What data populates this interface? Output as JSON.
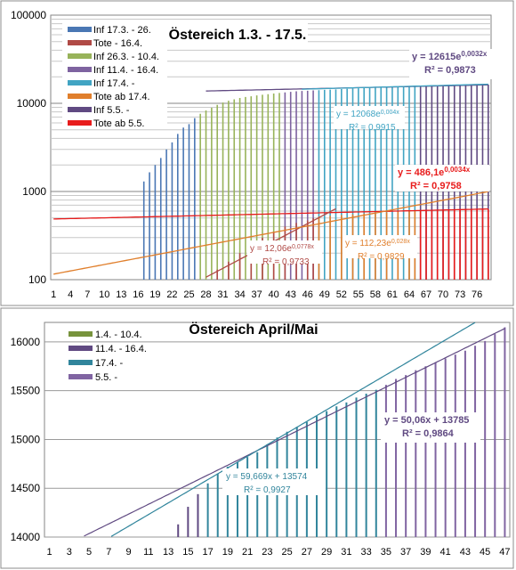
{
  "chart_data": [
    {
      "type": "bar",
      "title": "Östereich 1.3. - 17.5.",
      "xlabel": "",
      "ylabel": "",
      "yscale": "log",
      "ylim": [
        100,
        100000
      ],
      "xlim": [
        1,
        78
      ],
      "y_ticks": [
        "100",
        "1000",
        "10000",
        "100000"
      ],
      "x_ticks": [
        "1",
        "4",
        "7",
        "10",
        "13",
        "16",
        "19",
        "22",
        "25",
        "28",
        "31",
        "34",
        "37",
        "40",
        "43",
        "46",
        "49",
        "52",
        "55",
        "58",
        "61",
        "64",
        "67",
        "70",
        "73",
        "76"
      ],
      "grid": true,
      "legend_position": "top-left",
      "legend": [
        {
          "name": "Inf 17.3. - 26.",
          "color": "#4a77b4"
        },
        {
          "name": "Tote - 16.4.",
          "color": "#b04a46"
        },
        {
          "name": "Inf 26.3. - 10.4.",
          "color": "#98b35a"
        },
        {
          "name": "Inf 11.4. - 16.4.",
          "color": "#7e63a0"
        },
        {
          "name": "Inf 17.4. -",
          "color": "#41a4c3"
        },
        {
          "name": "Tote ab 17.4.",
          "color": "#e07f2c"
        },
        {
          "name": "Inf 5.5. -",
          "color": "#604a82"
        },
        {
          "name": "Tote ab 5.5.",
          "color": "#e81c1c"
        }
      ],
      "series": [
        {
          "name": "Inf 17.3. - 26.",
          "color": "#4a77b4",
          "x": [
            17,
            18,
            19,
            20,
            21,
            22,
            23,
            24,
            25,
            26
          ],
          "values": [
            1300,
            1650,
            2000,
            2400,
            3000,
            3600,
            4500,
            5300,
            5800,
            6800
          ]
        },
        {
          "name": "Inf 26.3. - 10.4.",
          "color": "#98b35a",
          "x": [
            27,
            28,
            29,
            30,
            31,
            32,
            33,
            34,
            35,
            36,
            37,
            38,
            39,
            40,
            41
          ],
          "values": [
            7600,
            8300,
            8900,
            9600,
            10200,
            10700,
            11100,
            11500,
            11800,
            12000,
            12300,
            12500,
            12700,
            12900,
            13100
          ]
        },
        {
          "name": "Inf 11.4. - 16.4.",
          "color": "#7e63a0",
          "x": [
            42,
            43,
            44,
            45,
            46,
            47
          ],
          "values": [
            13300,
            13500,
            13700,
            13800,
            13900,
            14000
          ]
        },
        {
          "name": "Inf 17.4. -",
          "color": "#41a4c3",
          "x": [
            48,
            49,
            50,
            51,
            52,
            53,
            54,
            55,
            56,
            57,
            58,
            59,
            60,
            61,
            62,
            63,
            64,
            65
          ],
          "values": [
            14100,
            14200,
            14300,
            14400,
            14500,
            14600,
            14700,
            14800,
            14900,
            15000,
            15100,
            15200,
            15300,
            15400,
            15500,
            15550,
            15600,
            15650
          ]
        },
        {
          "name": "Inf 5.5. -",
          "color": "#604a82",
          "x": [
            66,
            67,
            68,
            69,
            70,
            71,
            72,
            73,
            74,
            75,
            76,
            77,
            78
          ],
          "values": [
            15700,
            15750,
            15800,
            15850,
            15900,
            15950,
            16000,
            16050,
            16100,
            16150,
            16200,
            16250,
            16300
          ]
        },
        {
          "name": "Tote - 16.4.",
          "color": "#b04a46",
          "x": [
            28,
            30,
            32,
            34,
            36,
            38,
            40,
            42,
            44,
            46,
            47
          ],
          "values": [
            100,
            130,
            160,
            200,
            250,
            300,
            350,
            400,
            440,
            470,
            500
          ]
        },
        {
          "name": "Tote ab 17.4.",
          "color": "#e07f2c",
          "x": [
            48,
            50,
            52,
            54,
            56,
            58,
            60,
            62,
            64,
            65
          ],
          "values": [
            520,
            530,
            540,
            550,
            560,
            570,
            580,
            590,
            600,
            610
          ]
        },
        {
          "name": "Tote ab 5.5.",
          "color": "#e81c1c",
          "x": [
            66,
            67,
            68,
            69,
            70,
            71,
            72,
            73,
            74,
            75,
            76,
            77,
            78
          ],
          "values": [
            610,
            612,
            615,
            617,
            620,
            622,
            624,
            625,
            626,
            627,
            628,
            629,
            630
          ]
        }
      ],
      "trendlines": [
        {
          "label": "y = 12615e",
          "exp": "0,0032x",
          "r2": "R² = 0,9873",
          "color": "#604a82",
          "a": 12615,
          "b": 0.0032,
          "from": 28,
          "to": 78
        },
        {
          "label": "y = 12068e",
          "exp": "0,004x",
          "r2": "R² = 0,9915",
          "color": "#41a4c3",
          "a": 12068,
          "b": 0.004,
          "from": 45,
          "to": 78
        },
        {
          "label": "y = 486,1e",
          "exp": "0,0034x",
          "r2": "R² = 0,9758",
          "color": "#e81c1c",
          "a": 486.1,
          "b": 0.0034,
          "from": 1,
          "to": 78
        },
        {
          "label": "y = 12,06e",
          "exp": "0,0778x",
          "r2": "R² = 0,9733",
          "color": "#b04a46",
          "a": 12.06,
          "b": 0.0778,
          "from": 28,
          "to": 51
        },
        {
          "label": "y = 112,23e",
          "exp": "0,028x",
          "r2": "R² = 0,9829",
          "color": "#e07f2c",
          "a": 112.23,
          "b": 0.028,
          "from": 1,
          "to": 78
        }
      ]
    },
    {
      "type": "bar",
      "title": "Östereich April/Mai",
      "xlabel": "",
      "ylabel": "",
      "ylim": [
        14000,
        16200
      ],
      "xlim": [
        1,
        47
      ],
      "y_ticks": [
        "14000",
        "14500",
        "15000",
        "15500",
        "16000"
      ],
      "x_ticks": [
        "1",
        "3",
        "5",
        "7",
        "9",
        "11",
        "13",
        "15",
        "17",
        "19",
        "21",
        "23",
        "25",
        "27",
        "29",
        "31",
        "33",
        "35",
        "37",
        "39",
        "41",
        "43",
        "45",
        "47"
      ],
      "grid": true,
      "legend_position": "top-left",
      "legend": [
        {
          "name": "1.4. - 10.4.",
          "color": "#77933c"
        },
        {
          "name": "11.4. - 16.4.",
          "color": "#604a82"
        },
        {
          "name": "17.4. -",
          "color": "#31859c"
        },
        {
          "name": "5.5. -",
          "color": "#8064a2"
        }
      ],
      "series": [
        {
          "name": "1.4. - 10.4.",
          "color": "#77933c",
          "x": [
            1,
            2,
            3,
            4,
            5,
            6,
            7,
            8,
            9,
            10
          ],
          "values": [
            14000,
            14000,
            14000,
            14000,
            14000,
            14000,
            14000,
            14000,
            14000,
            14000
          ]
        },
        {
          "name": "11.4. - 16.4.",
          "color": "#604a82",
          "x": [
            11,
            12,
            13,
            14,
            15,
            16
          ],
          "values": [
            14000,
            14000,
            14000,
            14130,
            14310,
            14440
          ]
        },
        {
          "name": "17.4. -",
          "color": "#31859c",
          "x": [
            17,
            18,
            19,
            20,
            21,
            22,
            23,
            24,
            25,
            26,
            27,
            28,
            29,
            30,
            31,
            32,
            33,
            34
          ],
          "values": [
            14550,
            14650,
            14720,
            14770,
            14820,
            14870,
            14950,
            15020,
            15080,
            15130,
            15180,
            15240,
            15290,
            15340,
            15380,
            15430,
            15470,
            15510
          ]
        },
        {
          "name": "5.5. -",
          "color": "#8064a2",
          "x": [
            35,
            36,
            37,
            38,
            39,
            40,
            41,
            42,
            43,
            44,
            45,
            46,
            47
          ],
          "values": [
            15560,
            15620,
            15660,
            15710,
            15750,
            15790,
            15830,
            15870,
            15910,
            15960,
            16010,
            16080,
            16150
          ]
        }
      ],
      "trendlines": [
        {
          "label": "y = 50,06x + 13785",
          "r2": "R² = 0,9864",
          "color": "#604a82",
          "a": 13785,
          "b": 50.06,
          "from": 1,
          "to": 47
        },
        {
          "label": "y = 59,669x + 13574",
          "r2": "R² = 0,9927",
          "color": "#31859c",
          "a": 13574,
          "b": 59.669,
          "from": 1,
          "to": 47
        }
      ]
    }
  ]
}
